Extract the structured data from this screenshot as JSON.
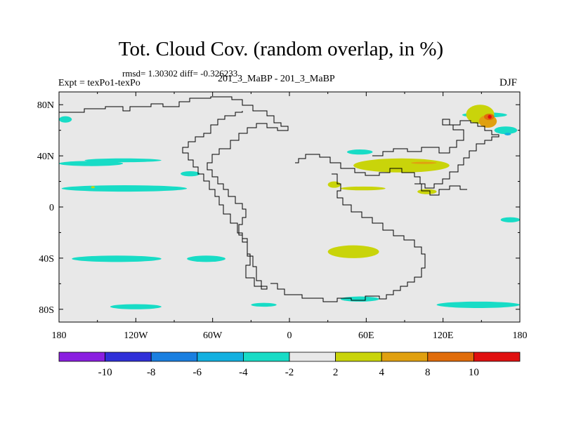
{
  "title": "Tot. Cloud Cov. (random overlap, in %)",
  "stats_line": "rmsd= 1.30302 diff= -0.326233",
  "left_label": "Expt = texPo1-texPo",
  "center_label": "201_3_MaBP - 201_3_MaBP",
  "right_label": "DJF",
  "colors": {
    "map_background": "#e8e8e8",
    "coastline": "#000000",
    "bins": [
      "#8a1fe0",
      "#3030d8",
      "#1a7fe0",
      "#13b0e0",
      "#18dcc6",
      "#e8e8e8",
      "#c9d40a",
      "#e0a010",
      "#e06c0a",
      "#e01010"
    ]
  },
  "chart_data": {
    "type": "heatmap",
    "projection": "cylindrical-equidistant",
    "xlim": [
      -180,
      180
    ],
    "ylim": [
      -90,
      90
    ],
    "x_ticks": [
      {
        "value": -180,
        "label": "180"
      },
      {
        "value": -120,
        "label": "120W"
      },
      {
        "value": -60,
        "label": "60W"
      },
      {
        "value": 0,
        "label": "0"
      },
      {
        "value": 60,
        "label": "60E"
      },
      {
        "value": 120,
        "label": "120E"
      },
      {
        "value": 180,
        "label": "180"
      }
    ],
    "y_ticks": [
      {
        "value": 80,
        "label": "80N"
      },
      {
        "value": 40,
        "label": "40N"
      },
      {
        "value": 0,
        "label": "0"
      },
      {
        "value": -40,
        "label": "40S"
      },
      {
        "value": -80,
        "label": "80S"
      }
    ],
    "colorbar": {
      "labels": [
        "-10",
        "-8",
        "-6",
        "-4",
        "-2",
        "2",
        "4",
        "8",
        "10"
      ],
      "bins": 10
    },
    "anomaly_regions": [
      {
        "lon": [
          -180,
          -170
        ],
        "lat": [
          66,
          71
        ],
        "bin": 4
      },
      {
        "lon": [
          -180,
          -130
        ],
        "lat": [
          32,
          36
        ],
        "bin": 4
      },
      {
        "lon": [
          -160,
          -100
        ],
        "lat": [
          35,
          38
        ],
        "bin": 4
      },
      {
        "lon": [
          -178,
          -80
        ],
        "lat": [
          12,
          17
        ],
        "bin": 4
      },
      {
        "lon": [
          -85,
          -70
        ],
        "lat": [
          24,
          28
        ],
        "bin": 4
      },
      {
        "lon": [
          -170,
          -100
        ],
        "lat": [
          -38,
          -43
        ],
        "bin": 4
      },
      {
        "lon": [
          -80,
          -50
        ],
        "lat": [
          -38,
          -43
        ],
        "bin": 4
      },
      {
        "lon": [
          -140,
          -100
        ],
        "lat": [
          -76,
          -80
        ],
        "bin": 4
      },
      {
        "lon": [
          -30,
          -10
        ],
        "lat": [
          -75,
          -78
        ],
        "bin": 4
      },
      {
        "lon": [
          40,
          70
        ],
        "lat": [
          -70,
          -74
        ],
        "bin": 4
      },
      {
        "lon": [
          115,
          180
        ],
        "lat": [
          -74,
          -79
        ],
        "bin": 4
      },
      {
        "lon": [
          45,
          65
        ],
        "lat": [
          41,
          45
        ],
        "bin": 4
      },
      {
        "lon": [
          135,
          170
        ],
        "lat": [
          70,
          74
        ],
        "bin": 4
      },
      {
        "lon": [
          160,
          178
        ],
        "lat": [
          57,
          63
        ],
        "bin": 4
      },
      {
        "lon": [
          165,
          180
        ],
        "lat": [
          -8,
          -12
        ],
        "bin": 4
      },
      {
        "lon": [
          168,
          173
        ],
        "lat": [
          56,
          58
        ],
        "bin": 3
      },
      {
        "lon": [
          50,
          125
        ],
        "lat": [
          27,
          38
        ],
        "bin": 6
      },
      {
        "lon": [
          30,
          40
        ],
        "lat": [
          15,
          20
        ],
        "bin": 6
      },
      {
        "lon": [
          40,
          75
        ],
        "lat": [
          13,
          16
        ],
        "bin": 6
      },
      {
        "lon": [
          100,
          115
        ],
        "lat": [
          10,
          14
        ],
        "bin": 6
      },
      {
        "lon": [
          30,
          70
        ],
        "lat": [
          -30,
          -40
        ],
        "bin": 6
      },
      {
        "lon": [
          -155,
          -152
        ],
        "lat": [
          15,
          16
        ],
        "bin": 6
      },
      {
        "lon": [
          138,
          160
        ],
        "lat": [
          65,
          80
        ],
        "bin": 6
      },
      {
        "lon": [
          95,
          115
        ],
        "lat": [
          34,
          35
        ],
        "bin": 7
      },
      {
        "lon": [
          148,
          162
        ],
        "lat": [
          62,
          72
        ],
        "bin": 7
      },
      {
        "lon": [
          152,
          160
        ],
        "lat": [
          68,
          73
        ],
        "bin": 8
      },
      {
        "lon": [
          155,
          158
        ],
        "lat": [
          69,
          72
        ],
        "bin": 9
      }
    ]
  }
}
